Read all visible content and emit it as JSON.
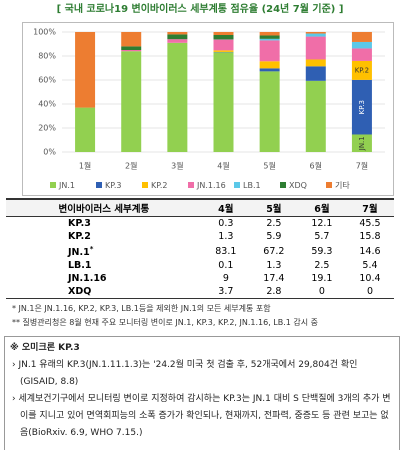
{
  "title": "[ 국내 코로나19 변이바이러스 세부계통 점유율 (24년 7월 기준) ]",
  "chart_data": {
    "type": "stacked_bar",
    "categories": [
      "1월",
      "2월",
      "3월",
      "4월",
      "5월",
      "6월",
      "7월"
    ],
    "series": [
      {
        "name": "JN.1",
        "color": "#92d050",
        "values": [
          37,
          84,
          91,
          83.1,
          67.2,
          59.3,
          14.6
        ]
      },
      {
        "name": "KP.3",
        "color": "#2f5fb3",
        "values": [
          0,
          0,
          0,
          0.3,
          2.5,
          12.1,
          45.5
        ]
      },
      {
        "name": "KP.2",
        "color": "#ffc000",
        "values": [
          0,
          0,
          0,
          1.3,
          5.9,
          5.7,
          15.8
        ]
      },
      {
        "name": "JN.1.16",
        "color": "#f06ea8",
        "values": [
          0,
          1,
          3,
          9,
          17.4,
          19.1,
          10.4
        ]
      },
      {
        "name": "LB.1",
        "color": "#5bc8e8",
        "values": [
          0,
          0,
          0,
          0.1,
          1.3,
          2.5,
          5.4
        ]
      },
      {
        "name": "XDQ",
        "color": "#2e7d32",
        "values": [
          0,
          3,
          4,
          3.7,
          2.8,
          0,
          0
        ]
      },
      {
        "name": "기타",
        "color": "#ed7d31",
        "values": [
          63,
          12,
          2,
          2.5,
          2.9,
          1.3,
          8.3
        ]
      }
    ],
    "ylim": [
      0,
      100
    ],
    "yticks": [
      {
        "value": 0,
        "label": "0%"
      },
      {
        "value": 20,
        "label": "20%"
      },
      {
        "value": 40,
        "label": "40%"
      },
      {
        "value": 60,
        "label": "60%"
      },
      {
        "value": 80,
        "label": "80%"
      },
      {
        "value": 100,
        "label": "100%"
      }
    ],
    "grid": true
  },
  "table": {
    "header": [
      "변이바이러스 세부계통",
      "4월",
      "5월",
      "6월",
      "7월"
    ],
    "rows": [
      {
        "label": "KP.3",
        "cells": [
          "0.3",
          "2.5",
          "12.1",
          "45.5"
        ]
      },
      {
        "label": "KP.2",
        "cells": [
          "1.3",
          "5.9",
          "5.7",
          "15.8"
        ]
      },
      {
        "label": "JN.1",
        "mark": "*",
        "cells": [
          "83.1",
          "67.2",
          "59.3",
          "14.6"
        ]
      },
      {
        "label": "LB.1",
        "cells": [
          "0.1",
          "1.3",
          "2.5",
          "5.4"
        ]
      },
      {
        "label": "JN.1.16",
        "cells": [
          "9",
          "17.4",
          "19.1",
          "10.4"
        ]
      },
      {
        "label": "XDQ",
        "cells": [
          "3.7",
          "2.8",
          "0",
          "0"
        ]
      }
    ]
  },
  "footnotes": [
    "* JN.1은 JN.1.16, KP.2, KP.3, LB.1등을 제외한 JN.1의 모든 세부계통 포함",
    "** 질병관리청은 8월 현재 주요 모니터링 변이로 JN.1, KP.3, KP.2, JN.1.16, LB.1 감시 중"
  ],
  "note": {
    "heading": "※ 오미크론 KP.3",
    "bullets": [
      "JN.1 유래의 KP.3(JN.1.11.1.3)는 '24.2월 미국 첫 검출 후, 52개국에서 29,804건 확인(GISAID, 8.8)",
      "세계보건기구에서 모니터링 변이로 지정하여 감시하는 KP.3는 JN.1 대비 S 단백질에 3개의 추가 변이를 지니고 있어 면역회피능의 소폭 증가가 확인되나, 현재까지, 전파력, 중증도 등 관련 보고는 없음(BioRxiv. 6.9, WHO 7.15.)"
    ]
  }
}
